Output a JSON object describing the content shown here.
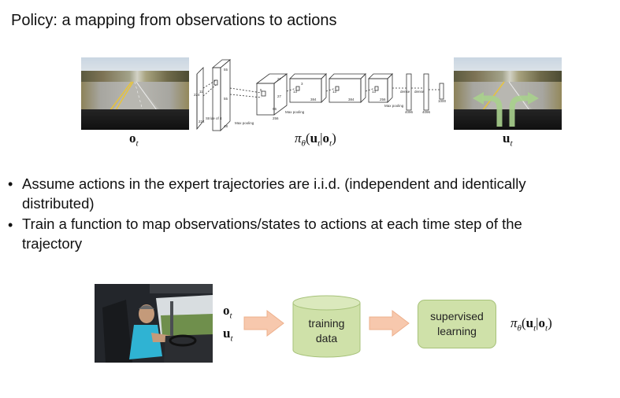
{
  "title": "Policy: a mapping from observations to actions",
  "top_figure": {
    "obs_label": "o",
    "obs_sub": "t",
    "action_label": "u",
    "action_sub": "t",
    "policy_label": {
      "pi": "π",
      "theta": "θ",
      "u": "u",
      "t1": "t",
      "bar": "|",
      "o": "o",
      "t2": "t"
    },
    "cnn_labels": {
      "stride": "Stride of 4",
      "maxpool1": "Max pooling",
      "maxpool2": "Max pooling",
      "maxpool3": "Max pooling",
      "dense1": "dense",
      "dense2": "dense",
      "n224a": "224",
      "n224b": "224",
      "n11": "11",
      "n55a": "55",
      "n55b": "55",
      "n27a": "27",
      "n27b": "27",
      "n5": "5",
      "n13a": "13",
      "n13b": "13",
      "n13c": "13",
      "n3": "3",
      "n48": "48",
      "n96": "96",
      "n256a": "256",
      "n256b": "256",
      "n384a": "384",
      "n384b": "384",
      "n4096a": "4096",
      "n4096b": "4096",
      "n1000": "1000"
    }
  },
  "bullets": [
    {
      "marker": "•",
      "line1": "Assume actions in the expert trajectories are i.i.d. (independent and identically",
      "line2": "distributed)"
    },
    {
      "marker": "•",
      "line1": "Train a function to map observations/states to actions at each time step of the",
      "line2": "trajectory"
    }
  ],
  "bottom_figure": {
    "obs": "o",
    "obs_sub": "t",
    "act": "u",
    "act_sub": "t",
    "training_data_line1": "training",
    "training_data_line2": "data",
    "supervised_line1": "supervised",
    "supervised_line2": "learning",
    "policy_label": {
      "pi": "π",
      "theta": "θ",
      "u": "u",
      "t1": "t",
      "bar": "|",
      "o": "o",
      "t2": "t"
    }
  },
  "colors": {
    "arrow_fill": "#f7c8ad",
    "arrow_stroke": "#eeb08c",
    "cylinder_fill": "#cfe1a9",
    "box_fill": "#cfe1a9",
    "turn_arrow": "#a8d08d"
  }
}
